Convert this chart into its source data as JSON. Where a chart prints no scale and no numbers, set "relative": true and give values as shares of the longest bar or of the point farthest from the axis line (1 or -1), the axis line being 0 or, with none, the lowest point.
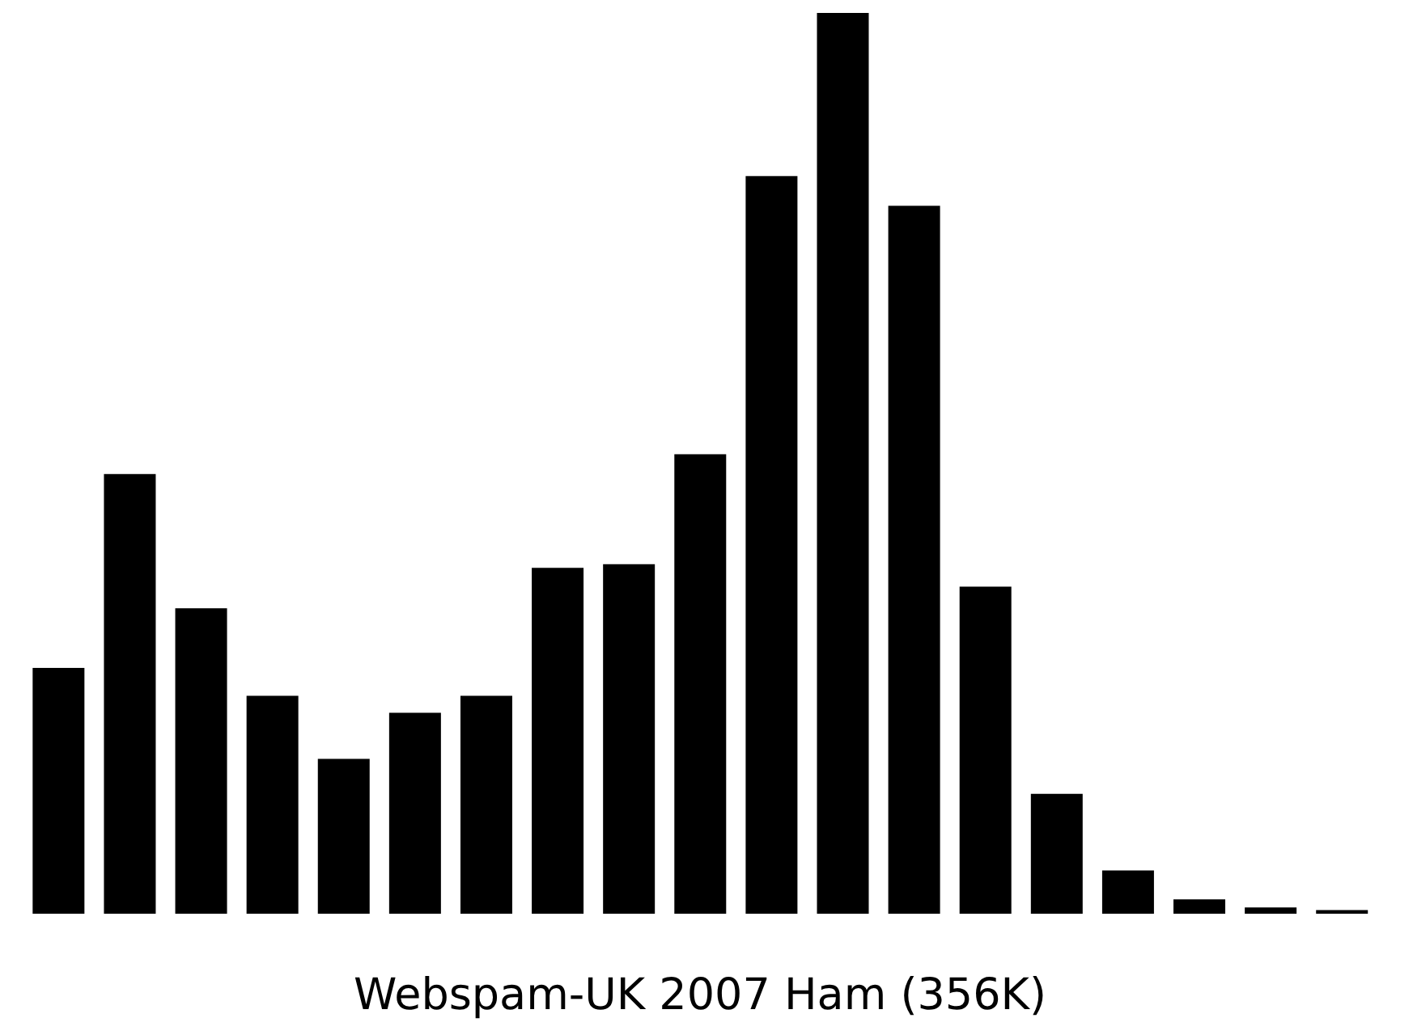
{
  "chart_data": {
    "type": "bar",
    "relative": true,
    "xlabel": "Webspam-UK 2007 Ham (356K)",
    "categories": [
      null,
      null,
      null,
      null,
      null,
      null,
      null,
      null,
      null,
      null,
      null,
      null,
      null,
      null,
      null,
      null,
      null,
      null,
      null
    ],
    "values": [
      0.273,
      0.488,
      0.339,
      0.242,
      0.172,
      0.223,
      0.242,
      0.384,
      0.388,
      0.51,
      0.819,
      1,
      0.786,
      0.363,
      0.133,
      0.048,
      0.016,
      0.007,
      0.004
    ],
    "color": "#000000"
  }
}
